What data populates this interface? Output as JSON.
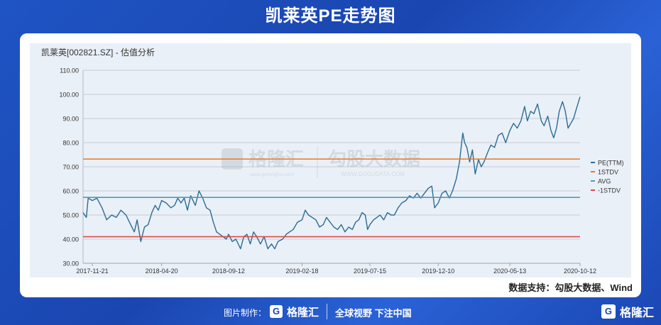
{
  "header": {
    "title": "凯莱英PE走势图"
  },
  "chart_title": "凯莱英[002821.SZ] - 估值分析",
  "source_note": "数据支持：勾股大数据、Wind",
  "footer": {
    "credit": "图片制作：",
    "logo_mark": "G",
    "logo_name": "格隆汇",
    "slogan": "全球视野 下注中国"
  },
  "corner_logo": {
    "mark": "G",
    "name": "格隆汇"
  },
  "watermark": {
    "left_name": "格隆汇",
    "left_url": "www.gelonghui.com",
    "right_name": "勾股大数据",
    "right_url": "WWW.GOGUDATA.COM"
  },
  "colors": {
    "pe": "#2b6c94",
    "plus_1std": "#e8782a",
    "avg": "#4d9cb4",
    "minus_1std": "#d94a4a",
    "grid": "#c9ccd2",
    "tick_text": "#333333"
  },
  "chart_data": {
    "type": "line",
    "title": "凯莱英[002821.SZ] - 估值分析",
    "xlabel": "",
    "ylabel": "",
    "x_start": "2017-11-01",
    "x_end": "2020-10-12",
    "ylim": [
      30,
      110
    ],
    "y_ticks": [
      "30.00",
      "40.00",
      "50.00",
      "60.00",
      "70.00",
      "80.00",
      "90.00",
      "100.00",
      "110.00"
    ],
    "x_ticks": [
      "2017-11-21",
      "2018-04-20",
      "2018-09-12",
      "2019-02-18",
      "2019-07-15",
      "2019-12-10",
      "2020-05-13",
      "2020-10-12"
    ],
    "legend_position": "right",
    "grid": true,
    "series": [
      {
        "name": "PE(TTM)",
        "type": "line",
        "points": [
          [
            "2017-11-01",
            51
          ],
          [
            "2017-11-08",
            49
          ],
          [
            "2017-11-12",
            57
          ],
          [
            "2017-11-21",
            56
          ],
          [
            "2017-12-01",
            57
          ],
          [
            "2017-12-12",
            53
          ],
          [
            "2017-12-22",
            48
          ],
          [
            "2018-01-02",
            50
          ],
          [
            "2018-01-12",
            49
          ],
          [
            "2018-01-22",
            52
          ],
          [
            "2018-02-02",
            50
          ],
          [
            "2018-02-12",
            46
          ],
          [
            "2018-02-20",
            43
          ],
          [
            "2018-02-26",
            48
          ],
          [
            "2018-03-06",
            39
          ],
          [
            "2018-03-14",
            45
          ],
          [
            "2018-03-22",
            46
          ],
          [
            "2018-03-30",
            51
          ],
          [
            "2018-04-06",
            54
          ],
          [
            "2018-04-13",
            52
          ],
          [
            "2018-04-20",
            56
          ],
          [
            "2018-04-30",
            55
          ],
          [
            "2018-05-10",
            53
          ],
          [
            "2018-05-18",
            54
          ],
          [
            "2018-05-25",
            57
          ],
          [
            "2018-06-01",
            55
          ],
          [
            "2018-06-08",
            57
          ],
          [
            "2018-06-15",
            52
          ],
          [
            "2018-06-22",
            58
          ],
          [
            "2018-06-27",
            56
          ],
          [
            "2018-07-02",
            54
          ],
          [
            "2018-07-10",
            60
          ],
          [
            "2018-07-18",
            57
          ],
          [
            "2018-07-26",
            53
          ],
          [
            "2018-08-03",
            52
          ],
          [
            "2018-08-10",
            47
          ],
          [
            "2018-08-17",
            43
          ],
          [
            "2018-08-24",
            42
          ],
          [
            "2018-08-31",
            41
          ],
          [
            "2018-09-07",
            40
          ],
          [
            "2018-09-12",
            42
          ],
          [
            "2018-09-20",
            39
          ],
          [
            "2018-09-28",
            40
          ],
          [
            "2018-10-08",
            36
          ],
          [
            "2018-10-15",
            41
          ],
          [
            "2018-10-22",
            42
          ],
          [
            "2018-10-29",
            38
          ],
          [
            "2018-11-05",
            43
          ],
          [
            "2018-11-12",
            41
          ],
          [
            "2018-11-20",
            38
          ],
          [
            "2018-11-28",
            41
          ],
          [
            "2018-12-06",
            36
          ],
          [
            "2018-12-14",
            38
          ],
          [
            "2018-12-21",
            36
          ],
          [
            "2018-12-28",
            39
          ],
          [
            "2019-01-07",
            40
          ],
          [
            "2019-01-15",
            42
          ],
          [
            "2019-01-22",
            43
          ],
          [
            "2019-01-30",
            44
          ],
          [
            "2019-02-08",
            47
          ],
          [
            "2019-02-18",
            48
          ],
          [
            "2019-02-25",
            52
          ],
          [
            "2019-03-04",
            50
          ],
          [
            "2019-03-12",
            49
          ],
          [
            "2019-03-20",
            48
          ],
          [
            "2019-03-28",
            45
          ],
          [
            "2019-04-05",
            46
          ],
          [
            "2019-04-12",
            49
          ],
          [
            "2019-04-20",
            47
          ],
          [
            "2019-04-28",
            45
          ],
          [
            "2019-05-06",
            44
          ],
          [
            "2019-05-14",
            46
          ],
          [
            "2019-05-22",
            43
          ],
          [
            "2019-05-30",
            45
          ],
          [
            "2019-06-07",
            44
          ],
          [
            "2019-06-14",
            47
          ],
          [
            "2019-06-21",
            48
          ],
          [
            "2019-06-28",
            51
          ],
          [
            "2019-07-05",
            50
          ],
          [
            "2019-07-10",
            44
          ],
          [
            "2019-07-15",
            46
          ],
          [
            "2019-07-23",
            48
          ],
          [
            "2019-07-30",
            49
          ],
          [
            "2019-08-06",
            50
          ],
          [
            "2019-08-14",
            48
          ],
          [
            "2019-08-22",
            51
          ],
          [
            "2019-08-30",
            50
          ],
          [
            "2019-09-06",
            50
          ],
          [
            "2019-09-14",
            53
          ],
          [
            "2019-09-22",
            55
          ],
          [
            "2019-10-01",
            56
          ],
          [
            "2019-10-09",
            58
          ],
          [
            "2019-10-17",
            57
          ],
          [
            "2019-10-25",
            59
          ],
          [
            "2019-11-02",
            57
          ],
          [
            "2019-11-10",
            59
          ],
          [
            "2019-11-18",
            61
          ],
          [
            "2019-11-26",
            62
          ],
          [
            "2019-12-02",
            53
          ],
          [
            "2019-12-10",
            55
          ],
          [
            "2019-12-18",
            59
          ],
          [
            "2019-12-26",
            60
          ],
          [
            "2020-01-03",
            57
          ],
          [
            "2020-01-10",
            60
          ],
          [
            "2020-01-18",
            65
          ],
          [
            "2020-01-25",
            72
          ],
          [
            "2020-02-01",
            84
          ],
          [
            "2020-02-05",
            80
          ],
          [
            "2020-02-10",
            78
          ],
          [
            "2020-02-16",
            72
          ],
          [
            "2020-02-22",
            77
          ],
          [
            "2020-02-28",
            67
          ],
          [
            "2020-03-06",
            73
          ],
          [
            "2020-03-12",
            70
          ],
          [
            "2020-03-18",
            72
          ],
          [
            "2020-03-26",
            76
          ],
          [
            "2020-04-02",
            79
          ],
          [
            "2020-04-10",
            78
          ],
          [
            "2020-04-18",
            83
          ],
          [
            "2020-04-26",
            84
          ],
          [
            "2020-05-04",
            80
          ],
          [
            "2020-05-13",
            85
          ],
          [
            "2020-05-21",
            88
          ],
          [
            "2020-05-29",
            86
          ],
          [
            "2020-06-06",
            89
          ],
          [
            "2020-06-14",
            95
          ],
          [
            "2020-06-20",
            89
          ],
          [
            "2020-06-27",
            93
          ],
          [
            "2020-07-04",
            92
          ],
          [
            "2020-07-12",
            96
          ],
          [
            "2020-07-20",
            89
          ],
          [
            "2020-07-26",
            87
          ],
          [
            "2020-08-03",
            91
          ],
          [
            "2020-08-10",
            85
          ],
          [
            "2020-08-16",
            82
          ],
          [
            "2020-08-22",
            86
          ],
          [
            "2020-08-28",
            93
          ],
          [
            "2020-09-04",
            97
          ],
          [
            "2020-09-10",
            93
          ],
          [
            "2020-09-16",
            86
          ],
          [
            "2020-09-22",
            88
          ],
          [
            "2020-09-28",
            90
          ],
          [
            "2020-10-04",
            94
          ],
          [
            "2020-10-12",
            99
          ]
        ]
      },
      {
        "name": "1STDV",
        "type": "hline",
        "y": 73.2
      },
      {
        "name": "AVG",
        "type": "hline",
        "y": 57.3
      },
      {
        "name": "-1STDV",
        "type": "hline",
        "y": 41.0
      }
    ]
  }
}
